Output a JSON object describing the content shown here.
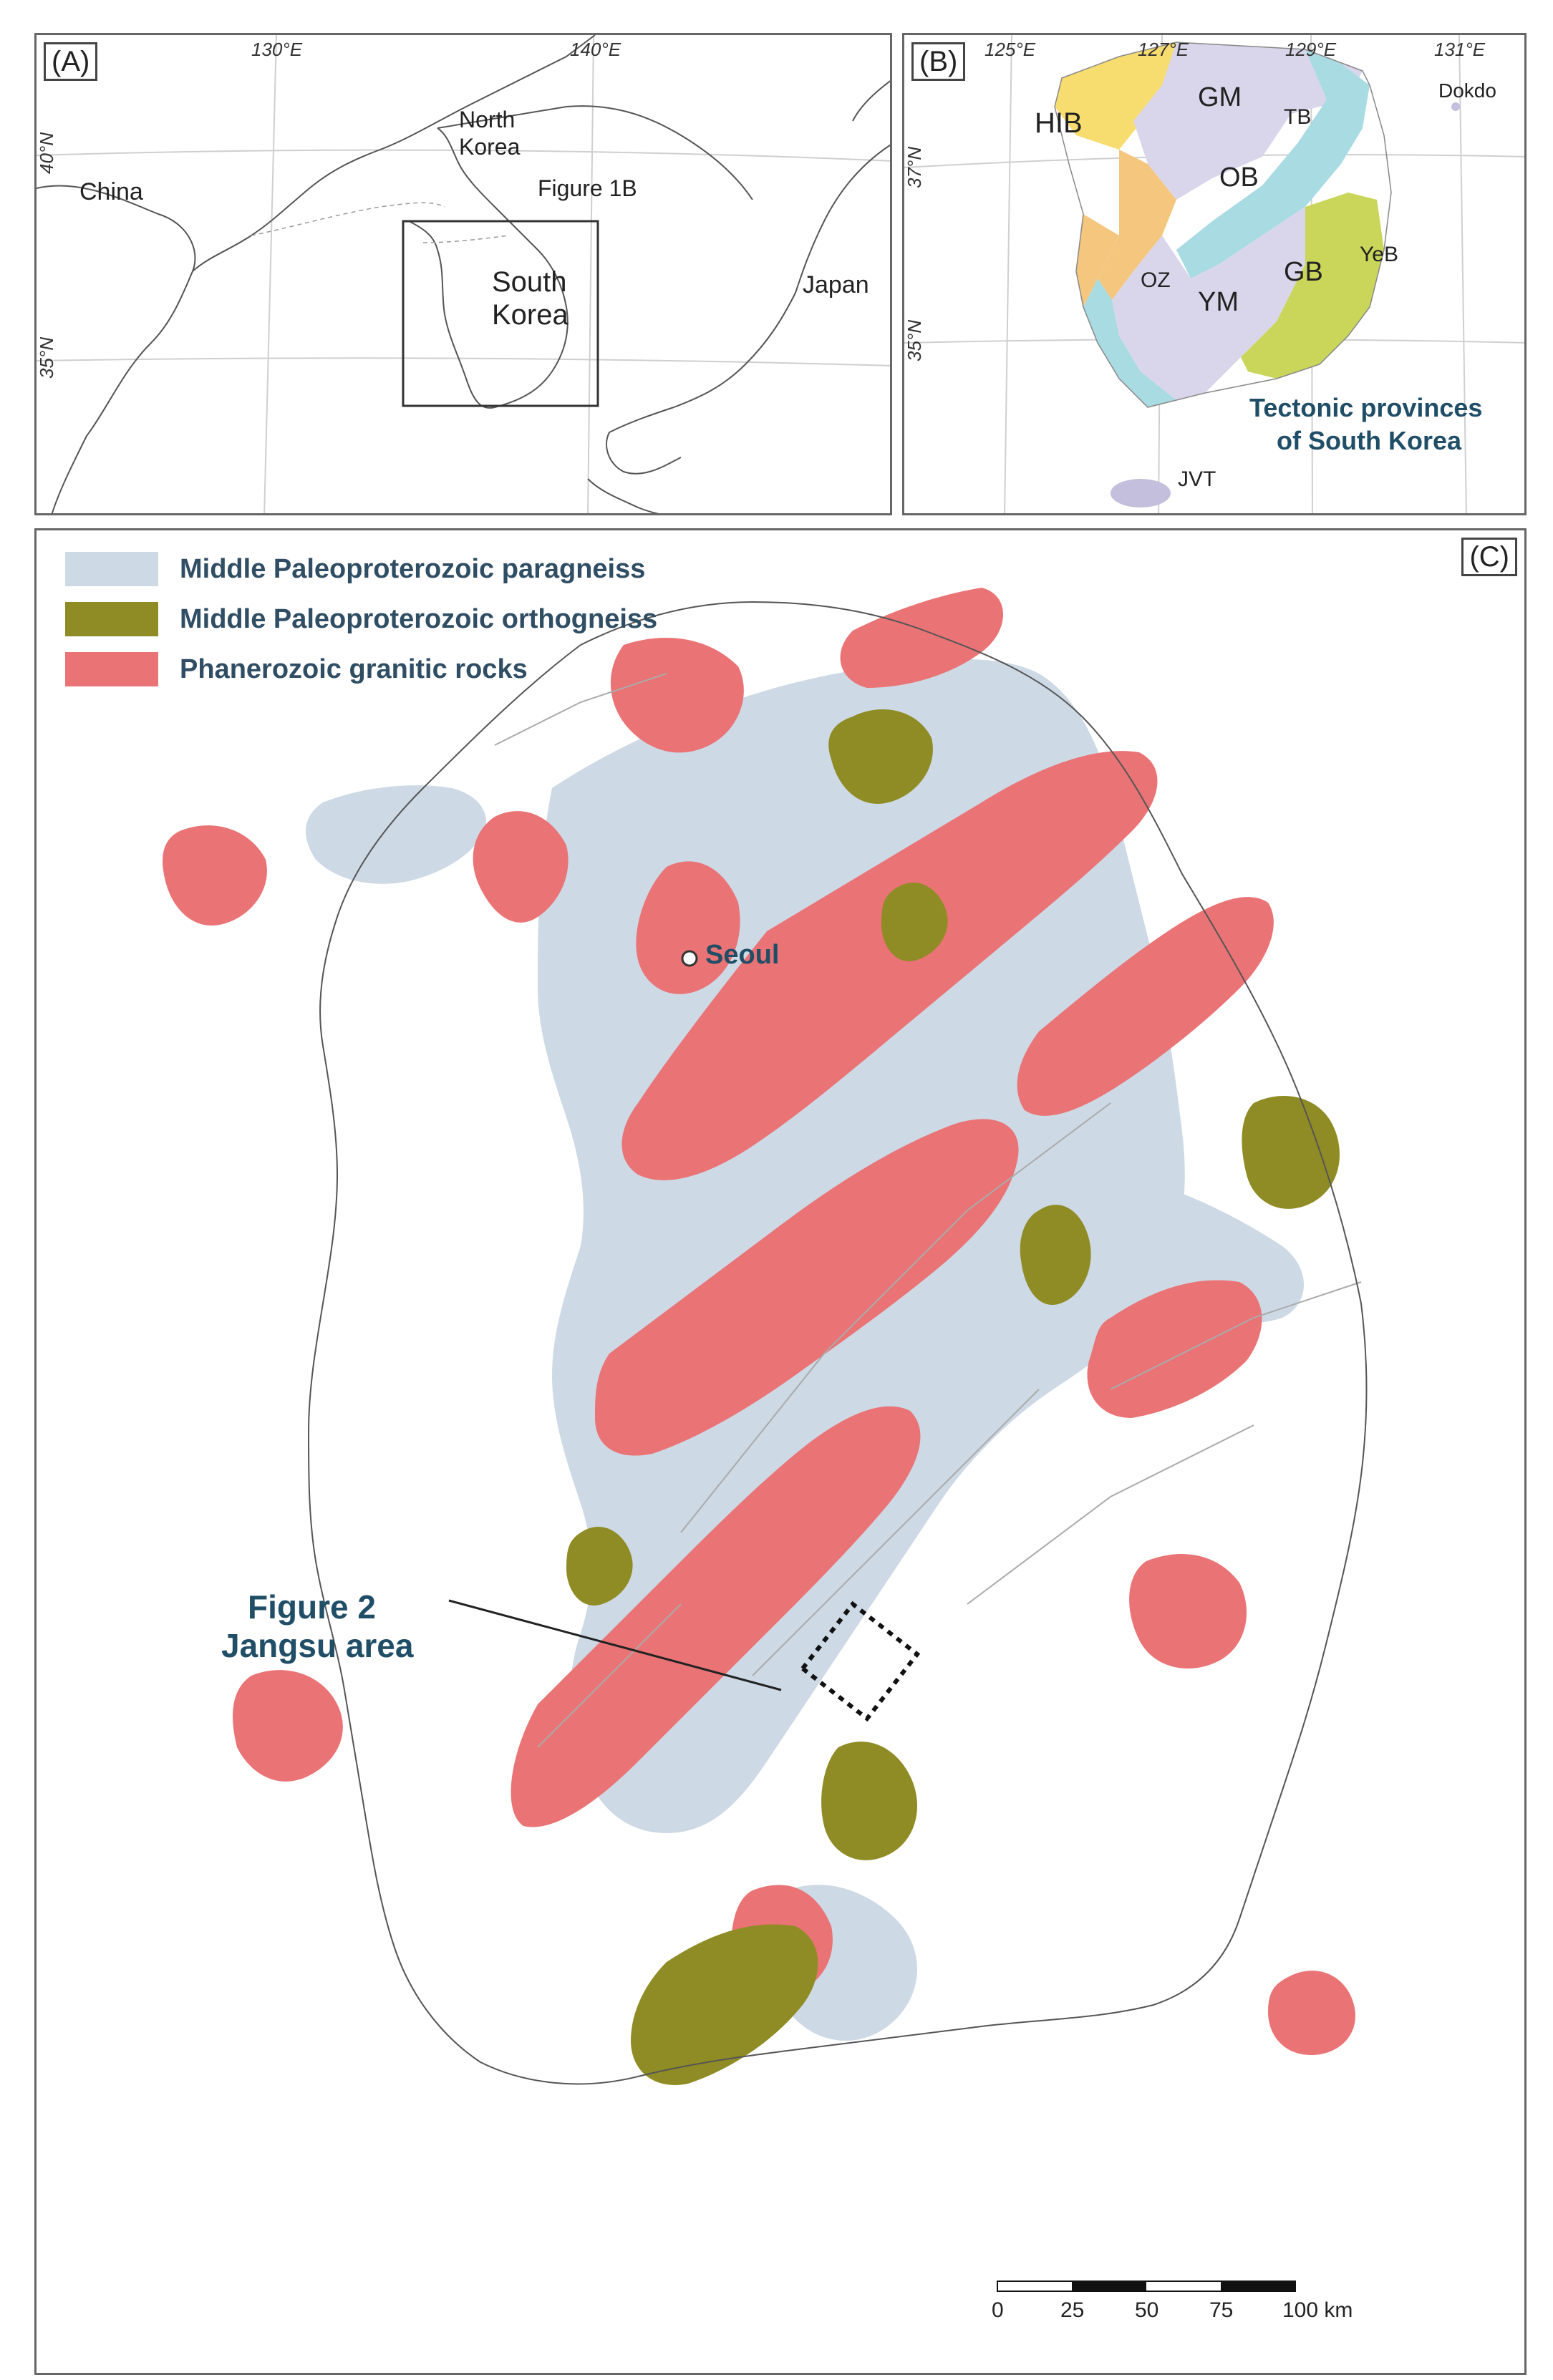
{
  "colors": {
    "paragneiss": "#cdd9e5",
    "orthogneiss": "#8f8c25",
    "granitic": "#ea7375",
    "coast": "#555555",
    "fault": "#aaaaaa",
    "title_blue": "#1f4e66",
    "hib": "#f7dc6f",
    "gm": "#d9d6ec",
    "tb": "#a9dbe3",
    "ob": "#f5c77e",
    "gb": "#c9d65a",
    "ym": "#d9d6ec",
    "oz": "#f5c77e",
    "jvt": "#c3bfdc"
  },
  "panel_a": {
    "label": "(A)",
    "lon_labels": [
      "130°E",
      "140°E"
    ],
    "lat_labels": [
      "40°N",
      "35°N"
    ],
    "places": {
      "china": "China",
      "north_korea_1": "North",
      "north_korea_2": "Korea",
      "figure_ref": "Figure 1B",
      "south_korea_1": "South",
      "south_korea_2": "Korea",
      "japan": "Japan"
    }
  },
  "panel_b": {
    "label": "(B)",
    "lon_labels": [
      "125°E",
      "127°E",
      "129°E",
      "131°E"
    ],
    "lat_labels": [
      "37°N",
      "35°N"
    ],
    "provinces": {
      "hib": "HIB",
      "gm": "GM",
      "tb": "TB",
      "ob": "OB",
      "oz": "OZ",
      "gb": "GB",
      "ym": "YM",
      "yeb": "YeB",
      "jvt": "JVT",
      "dokdo": "Dokdo"
    },
    "title_1": "Tectonic provinces",
    "title_2": "of South Korea"
  },
  "panel_c": {
    "label": "(C)",
    "legend": [
      {
        "label": "Middle Paleoproterozoic paragneiss",
        "color": "#cdd9e5"
      },
      {
        "label": "Middle Paleoproterozoic orthogneiss",
        "color": "#8f8c25"
      },
      {
        "label": "Phanerozoic granitic rocks",
        "color": "#ea7375"
      }
    ],
    "seoul": "Seoul",
    "callout_1": "Figure 2",
    "callout_2": "Jangsu area",
    "scale_ticks": [
      "0",
      "25",
      "50",
      "75",
      "100 km"
    ]
  }
}
